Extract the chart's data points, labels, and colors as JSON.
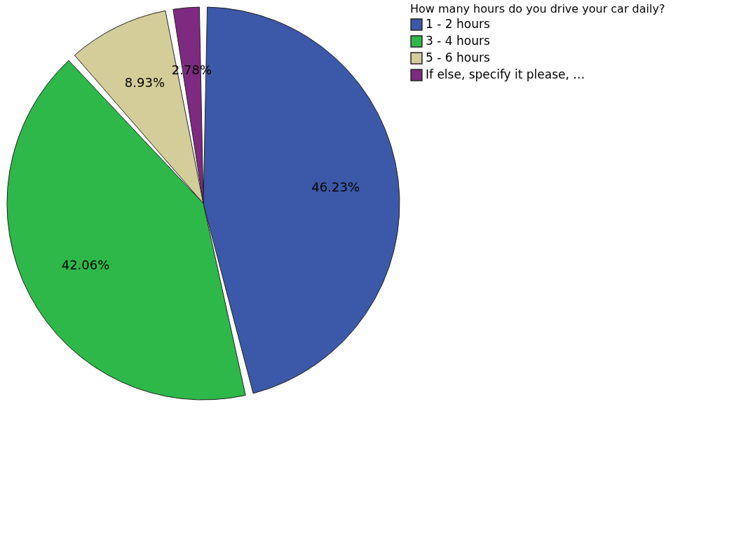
{
  "chart_data": {
    "type": "pie",
    "legend_title": "How many hours do you drive your car daily?",
    "legend": "top right",
    "value_labels": [
      "46.23%",
      "42.06%",
      "8.93%",
      "2.78%"
    ],
    "categories": [
      "1 - 2 hours",
      "3 - 4 hours",
      "5 - 6 hours",
      "If else, specify it please, …"
    ],
    "values": [
      46.23,
      42.06,
      8.93,
      2.78
    ],
    "colors": [
      "#3c58a8",
      "#2eb84a",
      "#d3cd9a",
      "#7e2a80"
    ]
  }
}
